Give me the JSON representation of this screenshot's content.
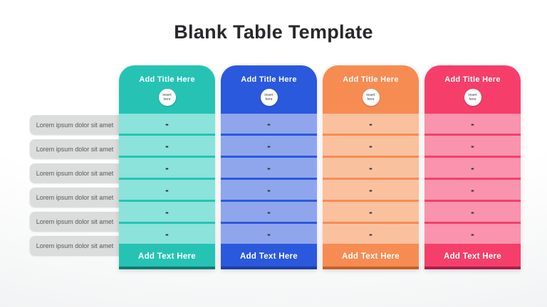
{
  "title": "Blank Table Template",
  "left_labels": [
    "Lorem ipsum dolor sit amet",
    "Lorem ipsum dolor sit amet",
    "Lorem ipsum dolor sit amet",
    "Lorem ipsum dolor sit amet",
    "Lorem ipsum dolor sit amet",
    "Lorem ipsum dolor sit amet"
  ],
  "columns": [
    {
      "title": "Add Title Here",
      "badge": "insert here",
      "footer": "Add Text Here",
      "cells": [
        "-",
        "-",
        "-",
        "-",
        "-",
        "-"
      ],
      "colors": {
        "main": "#26c3b5",
        "light": "#8be3db",
        "dark": "#0e7c74"
      }
    },
    {
      "title": "Add Title Here",
      "badge": "insert here",
      "footer": "Add Text Here",
      "cells": [
        "-",
        "-",
        "-",
        "-",
        "-",
        "-"
      ],
      "colors": {
        "main": "#2b59dd",
        "light": "#8fa6ec",
        "dark": "#1c3ea6"
      }
    },
    {
      "title": "Add Title Here",
      "badge": "insert here",
      "footer": "Add Text Here",
      "cells": [
        "-",
        "-",
        "-",
        "-",
        "-",
        "-"
      ],
      "colors": {
        "main": "#f68c52",
        "light": "#fac19f",
        "dark": "#c76125"
      }
    },
    {
      "title": "Add Title Here",
      "badge": "insert here",
      "footer": "Add Text Here",
      "cells": [
        "-",
        "-",
        "-",
        "-",
        "-",
        "-"
      ],
      "colors": {
        "main": "#f53f6a",
        "light": "#fa93ae",
        "dark": "#ad1d4d"
      }
    }
  ],
  "style": {
    "dash_color": "#2d3440",
    "label_bg": "#dbdcdc",
    "title_color": "#28282c"
  }
}
